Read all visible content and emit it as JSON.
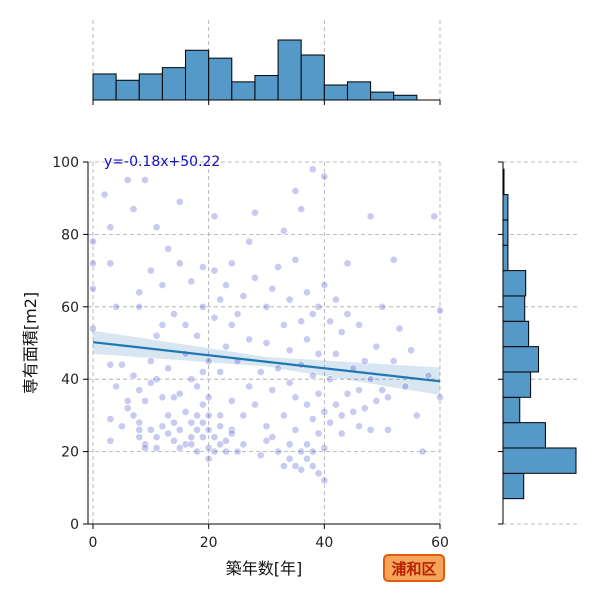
{
  "chart_data": {
    "type": "scatter",
    "xlabel": "築年数[年]",
    "ylabel": "専有面積[m2]",
    "xlim": [
      0,
      60
    ],
    "ylim": [
      0,
      100
    ],
    "xticks": [
      0,
      20,
      40,
      60
    ],
    "yticks": [
      0,
      20,
      40,
      60,
      80,
      100
    ],
    "grid": true,
    "point_color": "#3a3fc8",
    "line_color": "#1f77b4",
    "bar_color": "#5499c7",
    "regression": {
      "label": "y=-0.18x+50.22",
      "label_color": "#1010c0",
      "slope": -0.18,
      "intercept": 50.22,
      "x_range": [
        0,
        60
      ]
    },
    "marginal_x_histogram": {
      "bin_edges": [
        0,
        4,
        8,
        12,
        16,
        20,
        24,
        28,
        32,
        36,
        40,
        44,
        48,
        52,
        56,
        60
      ],
      "counts": [
        33,
        25,
        33,
        41,
        63,
        53,
        23,
        31,
        76,
        57,
        19,
        23,
        10,
        6,
        0
      ]
    },
    "marginal_y_histogram": {
      "bin_edges": [
        7,
        14,
        21,
        28,
        35,
        42,
        49,
        56,
        63,
        70,
        77,
        84,
        91,
        98
      ],
      "counts": [
        21,
        74,
        43,
        17,
        28,
        36,
        26,
        22,
        23,
        5,
        5,
        5,
        1
      ]
    },
    "points": [
      [
        0,
        54
      ],
      [
        0,
        65
      ],
      [
        0,
        78
      ],
      [
        0,
        72
      ],
      [
        2,
        91
      ],
      [
        3,
        44
      ],
      [
        3,
        29
      ],
      [
        3,
        23
      ],
      [
        3,
        82
      ],
      [
        3,
        72
      ],
      [
        4,
        38
      ],
      [
        4,
        60
      ],
      [
        5,
        27
      ],
      [
        5,
        44
      ],
      [
        6,
        95
      ],
      [
        6,
        34
      ],
      [
        6,
        32
      ],
      [
        7,
        30
      ],
      [
        7,
        87
      ],
      [
        7,
        41
      ],
      [
        8,
        24
      ],
      [
        8,
        26
      ],
      [
        8,
        37
      ],
      [
        8,
        28
      ],
      [
        8,
        60
      ],
      [
        8,
        64
      ],
      [
        9,
        22
      ],
      [
        9,
        95
      ],
      [
        9,
        21
      ],
      [
        9,
        34
      ],
      [
        10,
        26
      ],
      [
        10,
        39
      ],
      [
        10,
        70
      ],
      [
        10,
        45
      ],
      [
        11,
        24
      ],
      [
        11,
        52
      ],
      [
        11,
        40
      ],
      [
        11,
        82
      ],
      [
        11,
        21
      ],
      [
        12,
        27
      ],
      [
        12,
        66
      ],
      [
        12,
        55
      ],
      [
        12,
        35
      ],
      [
        13,
        30
      ],
      [
        13,
        76
      ],
      [
        13,
        43
      ],
      [
        13,
        25
      ],
      [
        14,
        28
      ],
      [
        14,
        23
      ],
      [
        14,
        58
      ],
      [
        14,
        35
      ],
      [
        15,
        36
      ],
      [
        15,
        72
      ],
      [
        15,
        26
      ],
      [
        15,
        21
      ],
      [
        15,
        89
      ],
      [
        16,
        47
      ],
      [
        16,
        55
      ],
      [
        16,
        22
      ],
      [
        16,
        31
      ],
      [
        17,
        24
      ],
      [
        17,
        67
      ],
      [
        17,
        40
      ],
      [
        17,
        22
      ],
      [
        17,
        28
      ],
      [
        18,
        30
      ],
      [
        18,
        20
      ],
      [
        18,
        52
      ],
      [
        18,
        38
      ],
      [
        18,
        26
      ],
      [
        19,
        24
      ],
      [
        19,
        42
      ],
      [
        19,
        60
      ],
      [
        19,
        33
      ],
      [
        19,
        28
      ],
      [
        19,
        71
      ],
      [
        20,
        26
      ],
      [
        20,
        21
      ],
      [
        20,
        35
      ],
      [
        20,
        45
      ],
      [
        20,
        30
      ],
      [
        20,
        18
      ],
      [
        21,
        24
      ],
      [
        21,
        70
      ],
      [
        21,
        85
      ],
      [
        21,
        20
      ],
      [
        21,
        57
      ],
      [
        22,
        27
      ],
      [
        22,
        62
      ],
      [
        22,
        22
      ],
      [
        22,
        30
      ],
      [
        22,
        42
      ],
      [
        23,
        23
      ],
      [
        23,
        49
      ],
      [
        23,
        66
      ],
      [
        23,
        20
      ],
      [
        24,
        26
      ],
      [
        24,
        55
      ],
      [
        24,
        25
      ],
      [
        24,
        72
      ],
      [
        24,
        34
      ],
      [
        25,
        20
      ],
      [
        25,
        45
      ],
      [
        25,
        58
      ],
      [
        26,
        63
      ],
      [
        26,
        30
      ],
      [
        26,
        22
      ],
      [
        27,
        38
      ],
      [
        27,
        78
      ],
      [
        27,
        51
      ],
      [
        28,
        33
      ],
      [
        28,
        68
      ],
      [
        28,
        86
      ],
      [
        29,
        42
      ],
      [
        29,
        19
      ],
      [
        30,
        60
      ],
      [
        30,
        23
      ],
      [
        30,
        50
      ],
      [
        30,
        27
      ],
      [
        31,
        65
      ],
      [
        31,
        37
      ],
      [
        31,
        24
      ],
      [
        32,
        71
      ],
      [
        32,
        43
      ],
      [
        32,
        20
      ],
      [
        33,
        81
      ],
      [
        33,
        16
      ],
      [
        33,
        55
      ],
      [
        33,
        30
      ],
      [
        34,
        48
      ],
      [
        34,
        22
      ],
      [
        34,
        18
      ],
      [
        34,
        62
      ],
      [
        34,
        39
      ],
      [
        35,
        16
      ],
      [
        35,
        92
      ],
      [
        35,
        35
      ],
      [
        35,
        26
      ],
      [
        35,
        73
      ],
      [
        36,
        20
      ],
      [
        36,
        56
      ],
      [
        36,
        44
      ],
      [
        36,
        15
      ],
      [
        36,
        87
      ],
      [
        37,
        22
      ],
      [
        37,
        64
      ],
      [
        37,
        18
      ],
      [
        37,
        33
      ],
      [
        37,
        51
      ],
      [
        38,
        16
      ],
      [
        38,
        58
      ],
      [
        38,
        29
      ],
      [
        38,
        41
      ],
      [
        38,
        98
      ],
      [
        38,
        20
      ],
      [
        39,
        25
      ],
      [
        39,
        60
      ],
      [
        39,
        14
      ],
      [
        39,
        36
      ],
      [
        39,
        47
      ],
      [
        40,
        21
      ],
      [
        40,
        12
      ],
      [
        40,
        31
      ],
      [
        40,
        66
      ],
      [
        40,
        96
      ],
      [
        41,
        40
      ],
      [
        41,
        56
      ],
      [
        41,
        28
      ],
      [
        42,
        33
      ],
      [
        42,
        62
      ],
      [
        42,
        47
      ],
      [
        43,
        30
      ],
      [
        43,
        53
      ],
      [
        43,
        25
      ],
      [
        44,
        36
      ],
      [
        44,
        58
      ],
      [
        44,
        72
      ],
      [
        45,
        31
      ],
      [
        45,
        43
      ],
      [
        46,
        27
      ],
      [
        46,
        55
      ],
      [
        46,
        37
      ],
      [
        47,
        32
      ],
      [
        47,
        45
      ],
      [
        48,
        40
      ],
      [
        48,
        85
      ],
      [
        48,
        26
      ],
      [
        49,
        49
      ],
      [
        49,
        34
      ],
      [
        50,
        37
      ],
      [
        50,
        60
      ],
      [
        51,
        35
      ],
      [
        51,
        26
      ],
      [
        52,
        45
      ],
      [
        52,
        73
      ],
      [
        53,
        54
      ],
      [
        54,
        38
      ],
      [
        55,
        48
      ],
      [
        56,
        30
      ],
      [
        57,
        20
      ],
      [
        58,
        41
      ],
      [
        59,
        85
      ],
      [
        60,
        35
      ],
      [
        60,
        59
      ]
    ]
  },
  "badge": {
    "text": "浦和区",
    "fill": "#f5a55a",
    "border": "#e05a10",
    "text_color": "#b82000"
  }
}
